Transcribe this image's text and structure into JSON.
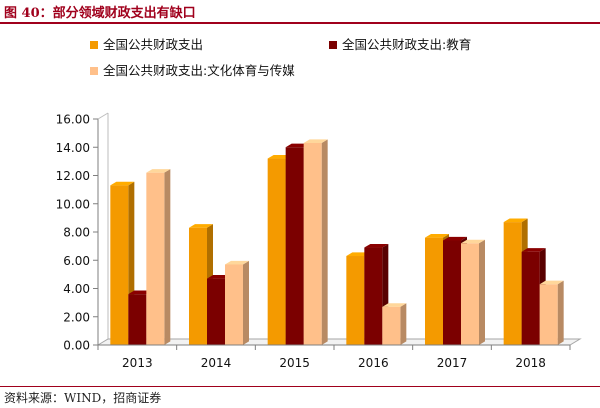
{
  "figure": {
    "title": "图 40：部分领域财政支出有缺口",
    "source": "资料来源：WIND，招商证券"
  },
  "colors": {
    "accent": "#a0001c",
    "series": [
      "#F49A00",
      "#7B0000",
      "#FFC08A"
    ]
  },
  "chart_data": {
    "type": "bar",
    "categories": [
      "2013",
      "2014",
      "2015",
      "2016",
      "2017",
      "2018"
    ],
    "series": [
      {
        "name": "全国公共财政支出",
        "values": [
          11.3,
          8.3,
          13.2,
          6.3,
          7.6,
          8.7
        ]
      },
      {
        "name": "全国公共财政支出:教育",
        "values": [
          3.6,
          4.7,
          14.0,
          6.9,
          7.4,
          6.6
        ]
      },
      {
        "name": "全国公共财政支出:文化体育与传媒",
        "values": [
          12.2,
          5.7,
          14.3,
          2.7,
          7.2,
          4.3
        ]
      }
    ],
    "yticks": [
      "0.00",
      "2.00",
      "4.00",
      "6.00",
      "8.00",
      "10.00",
      "12.00",
      "14.00",
      "16.00"
    ],
    "ylim": [
      0,
      16
    ],
    "grid": false,
    "legend_position": "top-left",
    "title": "",
    "xlabel": "",
    "ylabel": ""
  }
}
